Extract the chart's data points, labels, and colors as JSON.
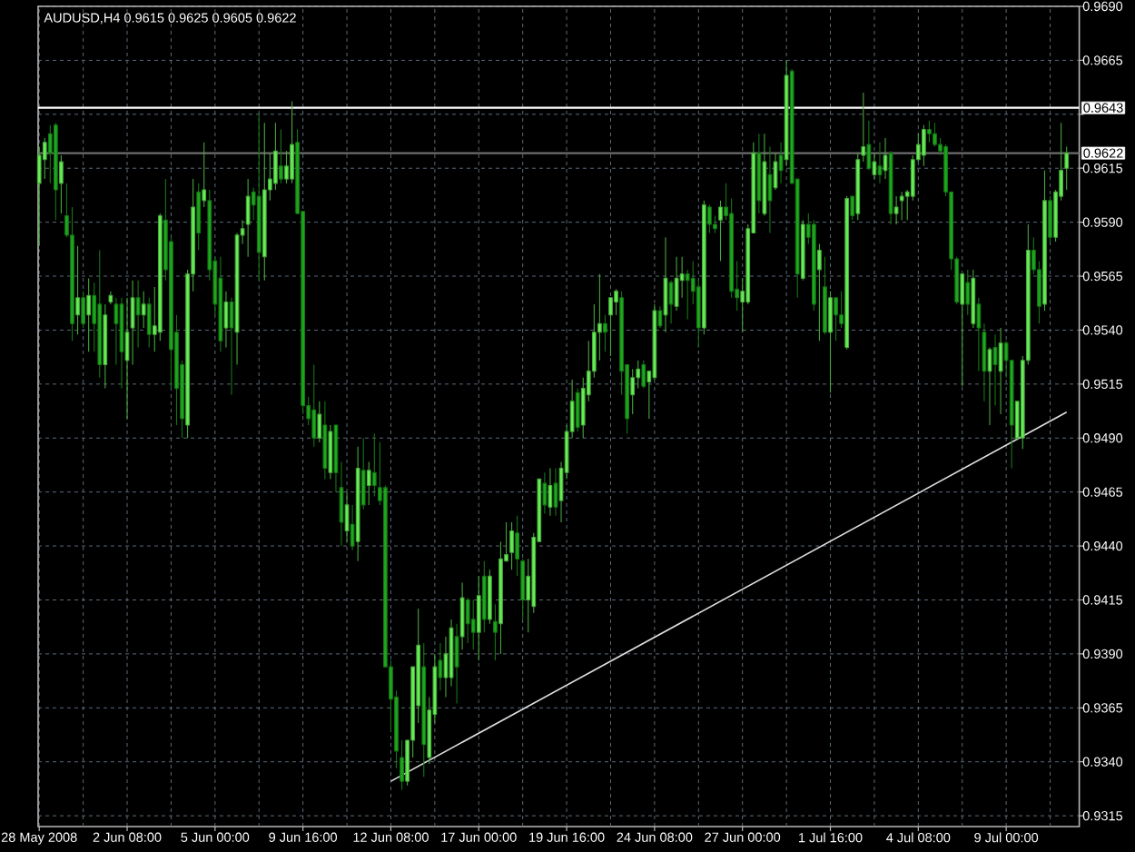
{
  "chart_data": {
    "type": "candlestick",
    "title": "AUDUSD,H4 0.9615 0.9625 0.9605 0.9622",
    "categories": [
      "28 May 2008",
      null,
      null,
      null,
      null,
      null,
      null,
      null,
      null,
      null,
      null,
      null,
      null,
      null,
      null,
      null,
      "2 Jun 08:00",
      null,
      null,
      null,
      null,
      null,
      null,
      null,
      null,
      null,
      null,
      null,
      null,
      null,
      null,
      null,
      "5 Jun 00:00",
      null,
      null,
      null,
      null,
      null,
      null,
      null,
      null,
      null,
      null,
      null,
      null,
      null,
      null,
      null,
      "9 Jun 16:00",
      null,
      null,
      null,
      null,
      null,
      null,
      null,
      null,
      null,
      null,
      null,
      null,
      null,
      null,
      null,
      "12 Jun 08:00",
      null,
      null,
      null,
      null,
      null,
      null,
      null,
      null,
      null,
      null,
      null,
      null,
      null,
      null,
      null,
      "17 Jun 00:00",
      null,
      null,
      null,
      null,
      null,
      null,
      null,
      null,
      null,
      null,
      null,
      null,
      null,
      null,
      null,
      "19 Jun 16:00",
      null,
      null,
      null,
      null,
      null,
      null,
      null,
      null,
      null,
      null,
      null,
      null,
      null,
      null,
      null,
      "24 Jun 08:00",
      null,
      null,
      null,
      null,
      null,
      null,
      null,
      null,
      null,
      null,
      null,
      null,
      null,
      null,
      null,
      "27 Jun 00:00",
      null,
      null,
      null,
      null,
      null,
      null,
      null,
      null,
      null,
      null,
      null,
      null,
      null,
      null,
      null,
      "1 Jul 16:00",
      null,
      null,
      null,
      null,
      null,
      null,
      null,
      null,
      null,
      null,
      null,
      null,
      null,
      null,
      null,
      "4 Jul 08:00",
      null,
      null,
      null,
      null,
      null,
      null,
      null,
      null,
      null,
      null,
      null,
      null,
      null,
      null,
      null,
      "9 Jul 00:00",
      null,
      null,
      null,
      null,
      null,
      null,
      null,
      null,
      null,
      null,
      null
    ],
    "ohlc": [
      [
        0.9608,
        0.9625,
        0.9579,
        0.9621
      ],
      [
        0.9619,
        0.9629,
        0.961,
        0.9627
      ],
      [
        0.9631,
        0.9635,
        0.9608,
        0.9622
      ],
      [
        0.9635,
        0.9636,
        0.9591,
        0.9605
      ],
      [
        0.9608,
        0.9621,
        0.9594,
        0.9618
      ],
      [
        0.9593,
        0.9608,
        0.9583,
        0.9584
      ],
      [
        0.9584,
        0.9597,
        0.9535,
        0.9543
      ],
      [
        0.9547,
        0.9579,
        0.9538,
        0.9555
      ],
      [
        0.9555,
        0.9558,
        0.9541,
        0.9543
      ],
      [
        0.9547,
        0.9564,
        0.953,
        0.9556
      ],
      [
        0.9556,
        0.9562,
        0.953,
        0.9543
      ],
      [
        0.9552,
        0.9577,
        0.9518,
        0.9524
      ],
      [
        0.9524,
        0.9552,
        0.9513,
        0.9547
      ],
      [
        0.9553,
        0.9558,
        0.9552,
        0.9556
      ],
      [
        0.9552,
        0.9555,
        0.9524,
        0.9543
      ],
      [
        0.9552,
        0.9555,
        0.9513,
        0.953
      ],
      [
        0.9526,
        0.9555,
        0.9499,
        0.9539
      ],
      [
        0.9541,
        0.9563,
        0.9524,
        0.9555
      ],
      [
        0.9555,
        0.9563,
        0.9532,
        0.9547
      ],
      [
        0.9547,
        0.9558,
        0.9541,
        0.9552
      ],
      [
        0.9552,
        0.9555,
        0.9532,
        0.9538
      ],
      [
        0.9538,
        0.956,
        0.953,
        0.9542
      ],
      [
        0.9539,
        0.9594,
        0.9535,
        0.9593
      ],
      [
        0.9591,
        0.961,
        0.9563,
        0.9568
      ],
      [
        0.9581,
        0.9583,
        0.9513,
        0.9531
      ],
      [
        0.9539,
        0.9547,
        0.9496,
        0.9513
      ],
      [
        0.9524,
        0.9526,
        0.949,
        0.9499
      ],
      [
        0.9496,
        0.9568,
        0.949,
        0.9566
      ],
      [
        0.9566,
        0.961,
        0.9558,
        0.9597
      ],
      [
        0.9604,
        0.9608,
        0.9577,
        0.9585
      ],
      [
        0.96,
        0.9627,
        0.9597,
        0.9605
      ],
      [
        0.96,
        0.9605,
        0.9563,
        0.9568
      ],
      [
        0.9572,
        0.9574,
        0.9547,
        0.9552
      ],
      [
        0.9564,
        0.9574,
        0.953,
        0.9535
      ],
      [
        0.9541,
        0.9558,
        0.9532,
        0.9553
      ],
      [
        0.9553,
        0.9555,
        0.951,
        0.9541
      ],
      [
        0.9539,
        0.9585,
        0.9524,
        0.9584
      ],
      [
        0.9584,
        0.9591,
        0.958,
        0.9587
      ],
      [
        0.9589,
        0.961,
        0.9574,
        0.9602
      ],
      [
        0.9604,
        0.9606,
        0.9591,
        0.9598
      ],
      [
        0.9602,
        0.964,
        0.9563,
        0.9576
      ],
      [
        0.9574,
        0.9636,
        0.9563,
        0.9605
      ],
      [
        0.9605,
        0.9622,
        0.96,
        0.961
      ],
      [
        0.9608,
        0.9636,
        0.9605,
        0.9623
      ],
      [
        0.9616,
        0.9633,
        0.9608,
        0.961
      ],
      [
        0.961,
        0.9623,
        0.9608,
        0.9616
      ],
      [
        0.961,
        0.9646,
        0.9608,
        0.9626
      ],
      [
        0.9627,
        0.9633,
        0.9594,
        0.9594
      ],
      [
        0.9595,
        0.9595,
        0.9501,
        0.9505
      ],
      [
        0.9505,
        0.9509,
        0.9496,
        0.9499
      ],
      [
        0.9503,
        0.9524,
        0.9486,
        0.949
      ],
      [
        0.949,
        0.9507,
        0.9488,
        0.9501
      ],
      [
        0.9496,
        0.9507,
        0.9471,
        0.9476
      ],
      [
        0.9474,
        0.9496,
        0.9471,
        0.9493
      ],
      [
        0.9496,
        0.9496,
        0.9465,
        0.9474
      ],
      [
        0.9467,
        0.9479,
        0.944,
        0.9451
      ],
      [
        0.9447,
        0.9465,
        0.9442,
        0.9459
      ],
      [
        0.945,
        0.9459,
        0.9438,
        0.944
      ],
      [
        0.9442,
        0.9486,
        0.9433,
        0.9476
      ],
      [
        0.9475,
        0.949,
        0.9457,
        0.9459
      ],
      [
        0.9468,
        0.9479,
        0.9459,
        0.9475
      ],
      [
        0.9474,
        0.9492,
        0.9463,
        0.9468
      ],
      [
        0.9467,
        0.9488,
        0.9459,
        0.9461
      ],
      [
        0.9467,
        0.9468,
        0.9384,
        0.9384
      ],
      [
        0.9384,
        0.9387,
        0.9354,
        0.9369
      ],
      [
        0.937,
        0.9373,
        0.9337,
        0.9345
      ],
      [
        0.9342,
        0.935,
        0.9327,
        0.9331
      ],
      [
        0.9331,
        0.935,
        0.9329,
        0.935
      ],
      [
        0.935,
        0.9384,
        0.9342,
        0.9384
      ],
      [
        0.9366,
        0.9411,
        0.9358,
        0.9394
      ],
      [
        0.9384,
        0.9395,
        0.9333,
        0.9348
      ],
      [
        0.9342,
        0.937,
        0.9339,
        0.9364
      ],
      [
        0.9362,
        0.939,
        0.9358,
        0.9384
      ],
      [
        0.9387,
        0.9395,
        0.9373,
        0.9379
      ],
      [
        0.9379,
        0.9398,
        0.937,
        0.939
      ],
      [
        0.9379,
        0.9406,
        0.9375,
        0.9402
      ],
      [
        0.9398,
        0.9404,
        0.9367,
        0.9384
      ],
      [
        0.9398,
        0.9423,
        0.9392,
        0.9416
      ],
      [
        0.9415,
        0.9416,
        0.9395,
        0.9404
      ],
      [
        0.9406,
        0.9415,
        0.9392,
        0.94
      ],
      [
        0.94,
        0.9426,
        0.9387,
        0.9417
      ],
      [
        0.9426,
        0.9433,
        0.94,
        0.9406
      ],
      [
        0.9406,
        0.9429,
        0.9404,
        0.9426
      ],
      [
        0.9405,
        0.9413,
        0.9387,
        0.94
      ],
      [
        0.9404,
        0.9442,
        0.939,
        0.9434
      ],
      [
        0.9433,
        0.9451,
        0.9433,
        0.9436
      ],
      [
        0.9437,
        0.9451,
        0.9429,
        0.9447
      ],
      [
        0.9446,
        0.9454,
        0.9426,
        0.9434
      ],
      [
        0.9433,
        0.9434,
        0.9406,
        0.9415
      ],
      [
        0.9415,
        0.9434,
        0.94,
        0.9426
      ],
      [
        0.9412,
        0.9446,
        0.9409,
        0.9444
      ],
      [
        0.9442,
        0.9471,
        0.9442,
        0.9471
      ],
      [
        0.9469,
        0.9474,
        0.9455,
        0.9459
      ],
      [
        0.9458,
        0.9476,
        0.9454,
        0.9468
      ],
      [
        0.9469,
        0.9476,
        0.9454,
        0.9458
      ],
      [
        0.9461,
        0.9479,
        0.9451,
        0.9476
      ],
      [
        0.9474,
        0.9496,
        0.9471,
        0.9493
      ],
      [
        0.9493,
        0.9517,
        0.949,
        0.9507
      ],
      [
        0.9511,
        0.9513,
        0.9493,
        0.9495
      ],
      [
        0.9496,
        0.9518,
        0.949,
        0.9513
      ],
      [
        0.951,
        0.9535,
        0.9507,
        0.9521
      ],
      [
        0.9521,
        0.9552,
        0.9518,
        0.9539
      ],
      [
        0.9539,
        0.9566,
        0.9526,
        0.9543
      ],
      [
        0.9543,
        0.9547,
        0.953,
        0.9539
      ],
      [
        0.9547,
        0.9555,
        0.9528,
        0.9555
      ],
      [
        0.9553,
        0.9559,
        0.9547,
        0.9558
      ],
      [
        0.9555,
        0.9558,
        0.951,
        0.9521
      ],
      [
        0.9524,
        0.9524,
        0.9492,
        0.9499
      ],
      [
        0.951,
        0.9522,
        0.9501,
        0.9518
      ],
      [
        0.9518,
        0.9526,
        0.9513,
        0.9522
      ],
      [
        0.9524,
        0.9526,
        0.9513,
        0.9514
      ],
      [
        0.9516,
        0.9521,
        0.9499,
        0.9521
      ],
      [
        0.9518,
        0.9552,
        0.9517,
        0.9549
      ],
      [
        0.9549,
        0.9551,
        0.9541,
        0.9542
      ],
      [
        0.9547,
        0.9583,
        0.9539,
        0.9564
      ],
      [
        0.9562,
        0.9563,
        0.9543,
        0.9552
      ],
      [
        0.9551,
        0.9574,
        0.9549,
        0.9564
      ],
      [
        0.9563,
        0.9574,
        0.9555,
        0.9566
      ],
      [
        0.9566,
        0.9568,
        0.9545,
        0.9563
      ],
      [
        0.9564,
        0.9572,
        0.9552,
        0.9558
      ],
      [
        0.956,
        0.9563,
        0.9532,
        0.9541
      ],
      [
        0.9541,
        0.96,
        0.9538,
        0.9598
      ],
      [
        0.9597,
        0.9598,
        0.9585,
        0.9589
      ],
      [
        0.9589,
        0.9593,
        0.9585,
        0.9587
      ],
      [
        0.9591,
        0.96,
        0.9572,
        0.9597
      ],
      [
        0.9597,
        0.9608,
        0.9591,
        0.9593
      ],
      [
        0.9594,
        0.9601,
        0.9555,
        0.9558
      ],
      [
        0.9559,
        0.9572,
        0.9549,
        0.9555
      ],
      [
        0.9553,
        0.9564,
        0.9539,
        0.9558
      ],
      [
        0.9553,
        0.9589,
        0.9552,
        0.9587
      ],
      [
        0.9585,
        0.9627,
        0.9585,
        0.9622
      ],
      [
        0.9622,
        0.9631,
        0.9594,
        0.96
      ],
      [
        0.9594,
        0.9631,
        0.9593,
        0.9618
      ],
      [
        0.9612,
        0.9625,
        0.9585,
        0.96
      ],
      [
        0.9606,
        0.9622,
        0.9605,
        0.9618
      ],
      [
        0.9621,
        0.9627,
        0.9608,
        0.9614
      ],
      [
        0.9619,
        0.9665,
        0.9616,
        0.9658
      ],
      [
        0.966,
        0.9661,
        0.9608,
        0.9608
      ],
      [
        0.961,
        0.961,
        0.9555,
        0.9566
      ],
      [
        0.9564,
        0.9591,
        0.9563,
        0.9589
      ],
      [
        0.9589,
        0.9594,
        0.958,
        0.9583
      ],
      [
        0.9589,
        0.9591,
        0.9549,
        0.9552
      ],
      [
        0.9568,
        0.958,
        0.9535,
        0.9577
      ],
      [
        0.956,
        0.9574,
        0.9538,
        0.9539
      ],
      [
        0.9539,
        0.9558,
        0.9511,
        0.9555
      ],
      [
        0.9555,
        0.9555,
        0.9535,
        0.9547
      ],
      [
        0.9547,
        0.9558,
        0.9541,
        0.9543
      ],
      [
        0.9532,
        0.9602,
        0.9531,
        0.9601
      ],
      [
        0.9602,
        0.9602,
        0.9591,
        0.9593
      ],
      [
        0.9594,
        0.9622,
        0.9591,
        0.9619
      ],
      [
        0.9621,
        0.965,
        0.9618,
        0.9625
      ],
      [
        0.9626,
        0.9637,
        0.9614,
        0.9615
      ],
      [
        0.9612,
        0.9622,
        0.961,
        0.9618
      ],
      [
        0.9616,
        0.9627,
        0.9608,
        0.9612
      ],
      [
        0.9614,
        0.9629,
        0.961,
        0.9621
      ],
      [
        0.9622,
        0.9623,
        0.9589,
        0.9594
      ],
      [
        0.9594,
        0.9602,
        0.9589,
        0.9597
      ],
      [
        0.96,
        0.9604,
        0.9591,
        0.9602
      ],
      [
        0.9602,
        0.9605,
        0.9591,
        0.9604
      ],
      [
        0.9602,
        0.9621,
        0.96,
        0.9619
      ],
      [
        0.9619,
        0.9631,
        0.9618,
        0.9626
      ],
      [
        0.9621,
        0.9635,
        0.9616,
        0.9633
      ],
      [
        0.9633,
        0.9637,
        0.9627,
        0.9631
      ],
      [
        0.9631,
        0.9636,
        0.9625,
        0.9626
      ],
      [
        0.9626,
        0.9629,
        0.9621,
        0.9623
      ],
      [
        0.9625,
        0.9626,
        0.9602,
        0.9604
      ],
      [
        0.9604,
        0.9604,
        0.9568,
        0.9573
      ],
      [
        0.9573,
        0.9574,
        0.9552,
        0.9553
      ],
      [
        0.9552,
        0.9566,
        0.9514,
        0.9566
      ],
      [
        0.9562,
        0.9568,
        0.9547,
        0.9552
      ],
      [
        0.9543,
        0.9568,
        0.9541,
        0.9564
      ],
      [
        0.9552,
        0.9555,
        0.9521,
        0.9541
      ],
      [
        0.9539,
        0.9543,
        0.9507,
        0.9521
      ],
      [
        0.9521,
        0.9532,
        0.9496,
        0.9531
      ],
      [
        0.9532,
        0.9538,
        0.9505,
        0.9524
      ],
      [
        0.9521,
        0.9541,
        0.9501,
        0.9534
      ],
      [
        0.9534,
        0.9535,
        0.9518,
        0.9526
      ],
      [
        0.9526,
        0.9526,
        0.9476,
        0.9496
      ],
      [
        0.949,
        0.9507,
        0.9489,
        0.9507
      ],
      [
        0.949,
        0.9528,
        0.9485,
        0.9526
      ],
      [
        0.9526,
        0.9589,
        0.9524,
        0.9577
      ],
      [
        0.9577,
        0.9583,
        0.9566,
        0.9568
      ],
      [
        0.9568,
        0.9572,
        0.9543,
        0.9551
      ],
      [
        0.9552,
        0.9614,
        0.9549,
        0.96
      ],
      [
        0.96,
        0.9602,
        0.9581,
        0.9583
      ],
      [
        0.9583,
        0.9605,
        0.9581,
        0.9604
      ],
      [
        0.9602,
        0.9636,
        0.96,
        0.9614
      ],
      [
        0.9615,
        0.9625,
        0.9605,
        0.9622
      ]
    ],
    "colors": [
      "#66ee55",
      "#66ee55",
      "#1ea81e",
      "#1ea81e",
      "#66ee55",
      "#1ea81e",
      "#1ea81e",
      "#66ee55",
      "#1ea81e",
      "#66ee55",
      "#1ea81e",
      "#1ea81e",
      "#66ee55",
      "#66ee55",
      "#1ea81e",
      "#1ea81e",
      "#66ee55",
      "#66ee55",
      "#1ea81e",
      "#66ee55",
      "#1ea81e",
      "#66ee55",
      "#66ee55",
      "#1ea81e",
      "#1ea81e",
      "#1ea81e",
      "#1ea81e",
      "#66ee55",
      "#66ee55",
      "#1ea81e",
      "#66ee55",
      "#1ea81e",
      "#1ea81e",
      "#1ea81e",
      "#66ee55",
      "#1ea81e",
      "#66ee55",
      "#66ee55",
      "#66ee55",
      "#1ea81e",
      "#1ea81e",
      "#66ee55",
      "#66ee55",
      "#66ee55",
      "#1ea81e",
      "#66ee55",
      "#66ee55",
      "#1ea81e",
      "#1ea81e",
      "#1ea81e",
      "#1ea81e",
      "#66ee55",
      "#1ea81e",
      "#66ee55",
      "#1ea81e",
      "#1ea81e",
      "#66ee55",
      "#1ea81e",
      "#66ee55",
      "#1ea81e",
      "#66ee55",
      "#1ea81e",
      "#1ea81e",
      "#1ea81e",
      "#1ea81e",
      "#1ea81e",
      "#1ea81e",
      "#66ee55",
      "#66ee55",
      "#66ee55",
      "#1ea81e",
      "#66ee55",
      "#66ee55",
      "#1ea81e",
      "#66ee55",
      "#66ee55",
      "#1ea81e",
      "#66ee55",
      "#1ea81e",
      "#1ea81e",
      "#66ee55",
      "#1ea81e",
      "#66ee55",
      "#1ea81e",
      "#66ee55",
      "#66ee55",
      "#66ee55",
      "#1ea81e",
      "#1ea81e",
      "#66ee55",
      "#66ee55",
      "#66ee55",
      "#1ea81e",
      "#66ee55",
      "#1ea81e",
      "#66ee55",
      "#66ee55",
      "#66ee55",
      "#1ea81e",
      "#66ee55",
      "#66ee55",
      "#66ee55",
      "#66ee55",
      "#1ea81e",
      "#66ee55",
      "#66ee55",
      "#1ea81e",
      "#1ea81e",
      "#66ee55",
      "#66ee55",
      "#1ea81e",
      "#66ee55",
      "#66ee55",
      "#1ea81e",
      "#66ee55",
      "#1ea81e",
      "#66ee55",
      "#66ee55",
      "#1ea81e",
      "#1ea81e",
      "#1ea81e",
      "#66ee55",
      "#1ea81e",
      "#1ea81e",
      "#66ee55",
      "#1ea81e",
      "#1ea81e",
      "#1ea81e",
      "#66ee55",
      "#66ee55",
      "#66ee55",
      "#1ea81e",
      "#66ee55",
      "#1ea81e",
      "#66ee55",
      "#1ea81e",
      "#66ee55",
      "#1ea81e",
      "#1ea81e",
      "#66ee55",
      "#1ea81e",
      "#1ea81e",
      "#66ee55",
      "#1ea81e",
      "#66ee55",
      "#1ea81e",
      "#1ea81e",
      "#66ee55",
      "#1ea81e",
      "#66ee55",
      "#66ee55",
      "#1ea81e",
      "#66ee55",
      "#1ea81e",
      "#66ee55",
      "#1ea81e",
      "#66ee55",
      "#66ee55",
      "#66ee55",
      "#66ee55",
      "#66ee55",
      "#66ee55",
      "#1ea81e",
      "#1ea81e",
      "#1ea81e",
      "#1ea81e",
      "#1ea81e",
      "#1ea81e",
      "#66ee55",
      "#1ea81e",
      "#66ee55",
      "#1ea81e",
      "#1ea81e",
      "#66ee55",
      "#1ea81e",
      "#66ee55",
      "#1ea81e",
      "#1ea81e",
      "#66ee55",
      "#66ee55",
      "#66ee55",
      "#1ea81e",
      "#1ea81e",
      "#66ee55",
      "#1ea81e",
      "#66ee55",
      "#66ee55",
      "#66ee55"
    ],
    "series": [
      {
        "type": "line",
        "color": "#e0e0e0",
        "values": [
          null,
          null,
          null,
          null,
          null,
          null,
          null,
          null,
          null,
          null,
          null,
          null,
          null,
          null,
          null,
          null,
          null,
          null,
          null,
          null,
          null,
          null,
          null,
          null,
          null,
          null,
          null,
          null,
          null,
          null,
          null,
          null,
          null,
          null,
          null,
          null,
          null,
          null,
          null,
          null,
          null,
          null,
          null,
          null,
          null,
          null,
          null,
          null,
          null,
          null,
          null,
          null,
          null,
          null,
          null,
          null,
          null,
          null,
          null,
          null,
          null,
          null,
          null,
          null,
          0.9331,
          null,
          null,
          null,
          null,
          null,
          null,
          null,
          null,
          null,
          null,
          null,
          null,
          null,
          null,
          null,
          null,
          null,
          null,
          null,
          null,
          null,
          null,
          null,
          null,
          null,
          null,
          null,
          null,
          null,
          null,
          null,
          null,
          null,
          null,
          null,
          null,
          null,
          null,
          null,
          null,
          null,
          null,
          null,
          null,
          null,
          null,
          null,
          null,
          null,
          null,
          null,
          null,
          null,
          null,
          null,
          null,
          null,
          null,
          null,
          null,
          null,
          null,
          null,
          null,
          null,
          null,
          null,
          null,
          null,
          null,
          null,
          null,
          null,
          null,
          null,
          null,
          null,
          null,
          null,
          null,
          null,
          null,
          null,
          null,
          null,
          null,
          null,
          null,
          null,
          null,
          null,
          null,
          null,
          null,
          null,
          null,
          null,
          null,
          null,
          null,
          null,
          null,
          null,
          null,
          null,
          null,
          null,
          null,
          null,
          null,
          null,
          null,
          null,
          null,
          null,
          null,
          null,
          null,
          null,
          null,
          null,
          null,
          0.9502
        ]
      }
    ],
    "ref_lines": [
      {
        "axis": "y",
        "value": 0.9643,
        "label": "0.9643",
        "color": "#ffffff"
      },
      {
        "axis": "y",
        "value": 0.9622,
        "label": "0.9622",
        "color": "#6e6e6e"
      }
    ],
    "ylim": [
      0.931,
      0.969
    ],
    "yticks": [
      {
        "value": 0.9315,
        "label": "0.9315"
      },
      {
        "value": 0.934,
        "label": "0.9340"
      },
      {
        "value": 0.9365,
        "label": "0.9365"
      },
      {
        "value": 0.939,
        "label": "0.9390"
      },
      {
        "value": 0.9415,
        "label": "0.9415"
      },
      {
        "value": 0.944,
        "label": "0.9440"
      },
      {
        "value": 0.9465,
        "label": "0.9465"
      },
      {
        "value": 0.949,
        "label": "0.9490"
      },
      {
        "value": 0.9515,
        "label": "0.9515"
      },
      {
        "value": 0.954,
        "label": "0.9540"
      },
      {
        "value": 0.9565,
        "label": "0.9565"
      },
      {
        "value": 0.959,
        "label": "0.9590"
      },
      {
        "value": 0.9615,
        "label": "0.9615"
      },
      {
        "value": 0.964,
        "label": null
      },
      {
        "value": 0.9665,
        "label": "0.9665"
      },
      {
        "value": 0.969,
        "label": "0.9690"
      }
    ],
    "grid": true
  }
}
